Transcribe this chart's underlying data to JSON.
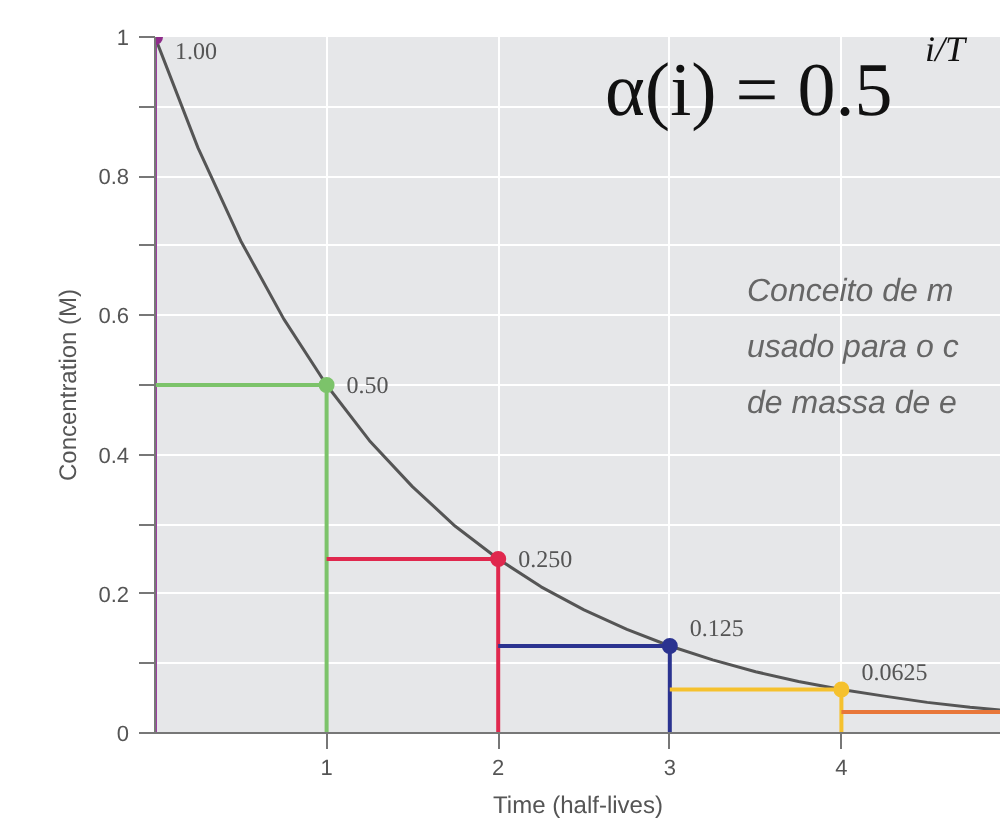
{
  "chart_data": {
    "type": "line",
    "xlabel": "Time (half-lives)",
    "ylabel": "Concentration (M)",
    "xlim": [
      0,
      4.93
    ],
    "ylim": [
      0,
      1.0
    ],
    "xticks": [
      1,
      2,
      3,
      4
    ],
    "yticks": [
      0,
      {
        "value": 0.1,
        "label": null
      },
      0.2,
      {
        "value": 0.3,
        "label": null
      },
      0.4,
      {
        "value": 0.5,
        "label": null
      },
      0.6,
      {
        "value": 0.7,
        "label": null
      },
      0.8,
      {
        "value": 0.9,
        "label": null
      },
      1.0
    ],
    "grid": true,
    "marker": "none",
    "line_style": "solid",
    "series": [
      {
        "color": "#555555",
        "x": [
          0,
          0.25,
          0.5,
          0.75,
          1,
          1.25,
          1.5,
          1.75,
          2,
          2.25,
          2.5,
          2.75,
          3,
          3.25,
          3.5,
          3.75,
          4,
          4.25,
          4.5,
          4.75,
          4.93
        ],
        "values": [
          1.0,
          0.841,
          0.707,
          0.595,
          0.5,
          0.42,
          0.354,
          0.297,
          0.25,
          0.21,
          0.177,
          0.149,
          0.125,
          0.105,
          0.088,
          0.074,
          0.0625,
          0.053,
          0.044,
          0.037,
          0.033
        ]
      },
      {
        "color": "#9b3fa0",
        "x": [
          0,
          0
        ],
        "values": [
          0,
          1.0
        ]
      },
      {
        "color": "#7cc36a",
        "x": [
          0,
          1,
          1
        ],
        "values": [
          0.5,
          0.5,
          0
        ]
      },
      {
        "color": "#e0284e",
        "x": [
          1,
          2,
          2
        ],
        "values": [
          0.25,
          0.25,
          0
        ]
      },
      {
        "color": "#2b3390",
        "x": [
          2,
          3,
          3
        ],
        "values": [
          0.125,
          0.125,
          0
        ]
      },
      {
        "color": "#f5c12e",
        "x": [
          3,
          4,
          4
        ],
        "values": [
          0.0625,
          0.0625,
          0
        ]
      },
      {
        "color": "#e8773a",
        "x": [
          4,
          4.93
        ],
        "values": [
          0.03,
          0.03
        ]
      },
      {
        "type": "scatter",
        "marker": "circle",
        "x": [
          0,
          1,
          2,
          3,
          4
        ],
        "values": [
          1.0,
          0.5,
          0.25,
          0.125,
          0.0625
        ],
        "colors": [
          "#8e2c8a",
          "#7cc36a",
          "#e0284e",
          "#2b3390",
          "#f5c12e"
        ],
        "value_labels": [
          "1.00",
          "0.50",
          "0.250",
          "0.125",
          "0.0625"
        ]
      }
    ],
    "annotations": [
      "α(i) = 0.5$^{i/T}$",
      "Conceito de m",
      "usado para o c",
      "de massa de e"
    ]
  }
}
